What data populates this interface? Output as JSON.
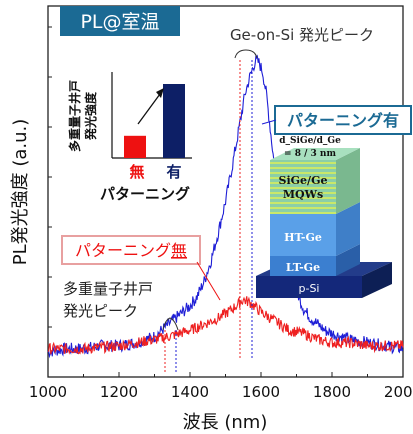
{
  "chart_data": {
    "type": "line",
    "title": "PL@室温",
    "xlabel": "波長 (nm)",
    "ylabel": "PL発光強度 (a.u.)",
    "xlim": [
      1000,
      2000
    ],
    "xticks": [
      1000,
      1200,
      1400,
      1600,
      1800,
      2000
    ],
    "grid": false,
    "series": [
      {
        "name": "パターニング有",
        "color": "#1f1fd6",
        "x": [
          1000,
          1050,
          1100,
          1150,
          1200,
          1250,
          1300,
          1320,
          1340,
          1360,
          1380,
          1400,
          1420,
          1440,
          1460,
          1480,
          1500,
          1520,
          1540,
          1555,
          1570,
          1585,
          1595,
          1605,
          1615,
          1625,
          1640,
          1660,
          1680,
          1700,
          1720,
          1740,
          1760,
          1780,
          1800,
          1850,
          1900,
          1950,
          2000
        ],
        "y": [
          0.02,
          0.03,
          0.03,
          0.04,
          0.04,
          0.05,
          0.07,
          0.09,
          0.11,
          0.13,
          0.15,
          0.17,
          0.2,
          0.25,
          0.32,
          0.41,
          0.51,
          0.63,
          0.76,
          0.86,
          0.92,
          0.97,
          0.96,
          0.93,
          0.86,
          0.76,
          0.6,
          0.44,
          0.31,
          0.22,
          0.16,
          0.13,
          0.11,
          0.09,
          0.08,
          0.06,
          0.05,
          0.04,
          0.03
        ]
      },
      {
        "name": "パターニング無",
        "color": "#ee2020",
        "x": [
          1000,
          1100,
          1200,
          1250,
          1300,
          1340,
          1370,
          1400,
          1440,
          1480,
          1520,
          1550,
          1570,
          1600,
          1640,
          1680,
          1720,
          1760,
          1800,
          1850,
          1900,
          1950,
          2000
        ],
        "y": [
          0.03,
          0.03,
          0.04,
          0.05,
          0.06,
          0.07,
          0.08,
          0.09,
          0.11,
          0.13,
          0.16,
          0.19,
          0.18,
          0.15,
          0.12,
          0.09,
          0.08,
          0.06,
          0.05,
          0.05,
          0.04,
          0.04,
          0.04
        ]
      }
    ],
    "annotations": {
      "peak_label": "Ge-on-Si 発光ピーク",
      "patterned_label": "パターニング有",
      "unpatterned_label_main": "パターニング",
      "unpatterned_label_accent": "無",
      "mqw_line1": "多重量子井戸",
      "mqw_line2": "発光ピーク"
    },
    "inset_bar": {
      "ylabel_line1": "多重量子井戸",
      "ylabel_line2": "発光強度",
      "categories": [
        "無",
        "有"
      ],
      "values": [
        0.3,
        1.0
      ],
      "colors": [
        "#ee1111",
        "#0d1f66"
      ],
      "xlabel": "パターニング"
    },
    "structure": {
      "ratio_line1": "d_SiGe/d_Ge",
      "ratio_line2": "= 8 / 3 nm",
      "layers": [
        "SiGe/Ge",
        "MQWs",
        "HT-Ge",
        "LT-Ge",
        "p-Si"
      ]
    }
  }
}
